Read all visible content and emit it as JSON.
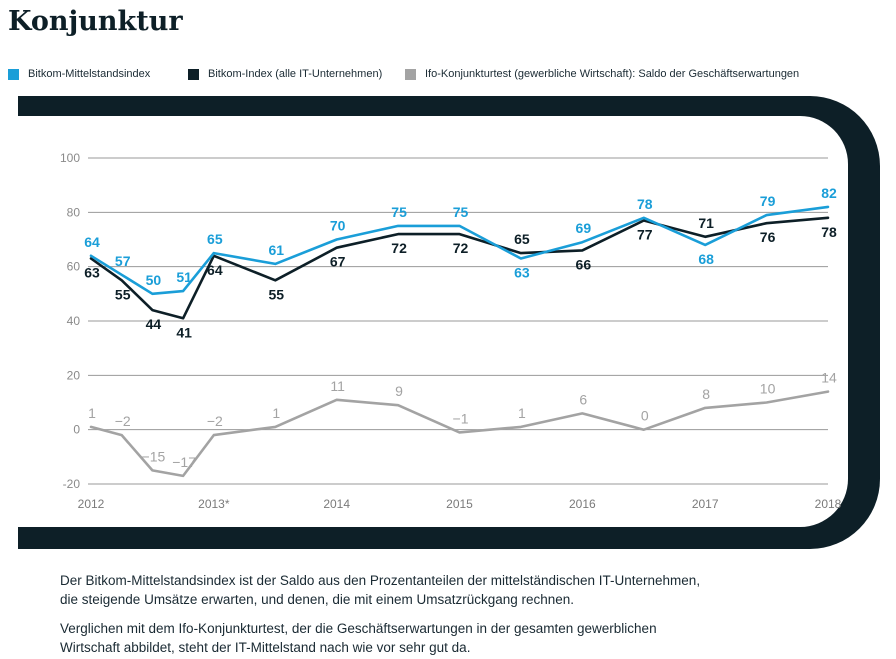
{
  "page_title": "Konjunktur",
  "legend": [
    {
      "label": "Bitkom-Mittelstandsindex",
      "color": "#1a9ed8"
    },
    {
      "label": "Bitkom-Index (alle IT-Unternehmen)",
      "color": "#0d1f27"
    },
    {
      "label": "Ifo-Konjunkturtest (gewerbliche Wirtschaft): Saldo der Geschäftserwartungen",
      "color": "#a3a3a3"
    }
  ],
  "chart_data": {
    "type": "line",
    "title": "",
    "xlabel": "",
    "ylabel": "",
    "x": [
      2012.0,
      2012.25,
      2012.5,
      2012.75,
      2013.0,
      2013.5,
      2014.0,
      2014.5,
      2015.0,
      2015.5,
      2016.0,
      2016.5,
      2017.0,
      2017.5,
      2018.0
    ],
    "x_tick_labels": [
      {
        "x": 2012,
        "label": "2012"
      },
      {
        "x": 2013,
        "label": "2013*"
      },
      {
        "x": 2014,
        "label": "2014"
      },
      {
        "x": 2015,
        "label": "2015"
      },
      {
        "x": 2016,
        "label": "2016"
      },
      {
        "x": 2017,
        "label": "2017"
      },
      {
        "x": 2018,
        "label": "2018"
      }
    ],
    "y_ticks": [
      100,
      80,
      60,
      40,
      20,
      0,
      -20
    ],
    "ylim": [
      -20,
      100
    ],
    "grid": "horizontal",
    "legend_position": "top",
    "series": [
      {
        "name": "Bitkom-Mittelstandsindex",
        "color": "#1a9ed8",
        "values": [
          64,
          57,
          50,
          51,
          65,
          61,
          70,
          75,
          75,
          63,
          69,
          78,
          68,
          79,
          82
        ],
        "label_pos": [
          "above",
          "above",
          "above",
          "above",
          "above",
          "above",
          "above",
          "above",
          "above",
          "below",
          "above",
          "above",
          "below",
          "above",
          "above"
        ]
      },
      {
        "name": "Bitkom-Index (alle IT-Unternehmen)",
        "color": "#0d1f27",
        "values": [
          63,
          55,
          44,
          41,
          64,
          55,
          67,
          72,
          72,
          65,
          66,
          77,
          71,
          76,
          78
        ],
        "label_pos": [
          "below",
          "below",
          "below",
          "below",
          "below",
          "below",
          "below",
          "below",
          "below",
          "above",
          "below",
          "below",
          "above",
          "below",
          "below"
        ]
      },
      {
        "name": "Ifo-Konjunkturtest (gewerbliche Wirtschaft): Saldo der Geschäftserwartungen",
        "color": "#a3a3a3",
        "values": [
          1,
          -2,
          -15,
          -17,
          -2,
          1,
          11,
          9,
          -1,
          1,
          6,
          0,
          8,
          10,
          14
        ],
        "label_pos": [
          "above",
          "above",
          "above",
          "above",
          "above",
          "above",
          "above",
          "above",
          "above",
          "above",
          "above",
          "above",
          "above",
          "above",
          "above"
        ]
      }
    ]
  },
  "paragraphs": [
    {
      "lines": [
        "Der Bitkom-Mittelstandsindex ist der Saldo aus den Prozentanteilen der mittelständischen IT-Unternehmen,",
        "die steigende Umsätze erwarten, und denen, die mit einem Umsatzrückgang rechnen."
      ]
    },
    {
      "lines": [
        "Verglichen mit dem Ifo-Konjunkturtest, der die Geschäftserwartungen in der gesamten gewerblichen",
        "Wirtschaft abbildet, steht der IT-Mittelstand nach wie vor sehr gut da."
      ]
    }
  ]
}
